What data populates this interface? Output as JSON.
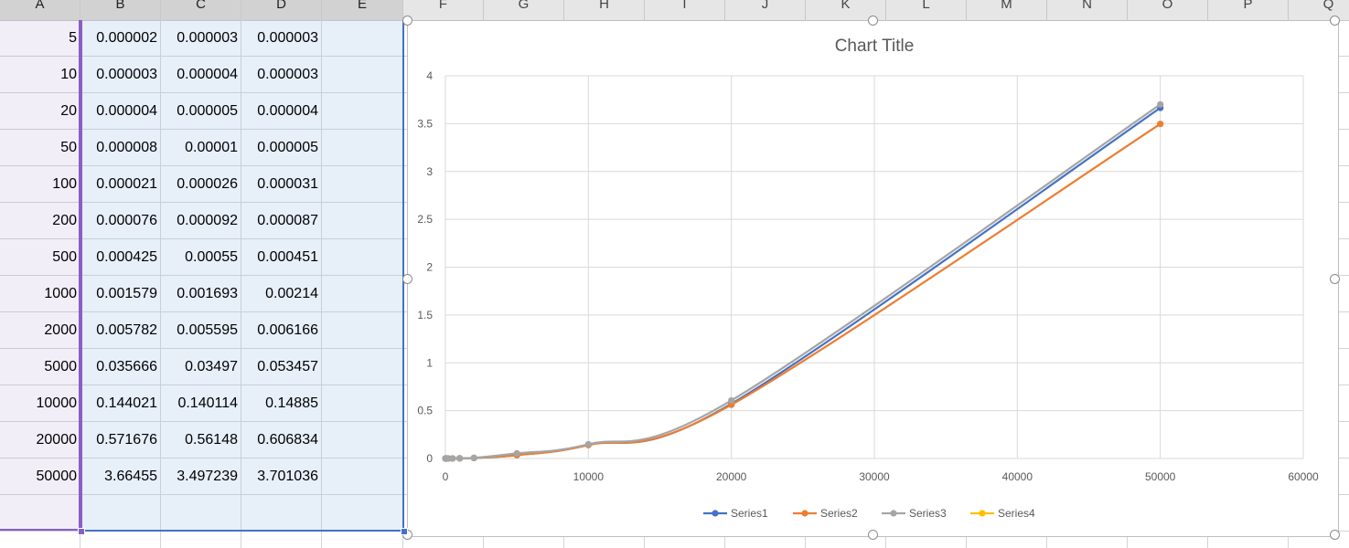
{
  "sheet": {
    "columns": [
      "A",
      "B",
      "C",
      "D",
      "E",
      "F",
      "G",
      "H",
      "I",
      "J",
      "K",
      "L",
      "M",
      "N",
      "O",
      "P",
      "Q"
    ],
    "selected_columns": [
      "A",
      "B",
      "C",
      "D",
      "E"
    ],
    "rows": [
      [
        "5",
        "0.000002",
        "0.000003",
        "0.000003"
      ],
      [
        "10",
        "0.000003",
        "0.000004",
        "0.000003"
      ],
      [
        "20",
        "0.000004",
        "0.000005",
        "0.000004"
      ],
      [
        "50",
        "0.000008",
        "0.00001",
        "0.000005"
      ],
      [
        "100",
        "0.000021",
        "0.000026",
        "0.000031"
      ],
      [
        "200",
        "0.000076",
        "0.000092",
        "0.000087"
      ],
      [
        "500",
        "0.000425",
        "0.00055",
        "0.000451"
      ],
      [
        "1000",
        "0.001579",
        "0.001693",
        "0.00214"
      ],
      [
        "2000",
        "0.005782",
        "0.005595",
        "0.006166"
      ],
      [
        "5000",
        "0.035666",
        "0.03497",
        "0.053457"
      ],
      [
        "10000",
        "0.144021",
        "0.140114",
        "0.14885"
      ],
      [
        "20000",
        "0.571676",
        "0.56148",
        "0.606834"
      ],
      [
        "50000",
        "3.66455",
        "3.497239",
        "3.701036"
      ]
    ]
  },
  "chart_data": {
    "type": "scatter",
    "smooth": true,
    "title": "Chart Title",
    "xlim": [
      0,
      60000
    ],
    "ylim": [
      0,
      4
    ],
    "xticks": [
      "0",
      "10000",
      "20000",
      "30000",
      "40000",
      "50000",
      "60000"
    ],
    "yticks": [
      "0",
      "0.5",
      "1",
      "1.5",
      "2",
      "2.5",
      "3",
      "3.5",
      "4"
    ],
    "grid": true,
    "legend_position": "bottom",
    "x": [
      5,
      10,
      20,
      50,
      100,
      200,
      500,
      1000,
      2000,
      5000,
      10000,
      20000,
      50000
    ],
    "series": [
      {
        "name": "Series1",
        "color": "#4472c4",
        "values": [
          2e-06,
          3e-06,
          4e-06,
          8e-06,
          2.1e-05,
          7.6e-05,
          0.000425,
          0.001579,
          0.005782,
          0.035666,
          0.144021,
          0.571676,
          3.66455
        ]
      },
      {
        "name": "Series2",
        "color": "#ed7d31",
        "values": [
          3e-06,
          4e-06,
          5e-06,
          1e-05,
          2.6e-05,
          9.2e-05,
          0.00055,
          0.001693,
          0.005595,
          0.03497,
          0.140114,
          0.56148,
          3.497239
        ]
      },
      {
        "name": "Series3",
        "color": "#a5a5a5",
        "values": [
          3e-06,
          3e-06,
          4e-06,
          5e-06,
          3.1e-05,
          8.7e-05,
          0.000451,
          0.00214,
          0.006166,
          0.053457,
          0.14885,
          0.606834,
          3.701036
        ]
      },
      {
        "name": "Series4",
        "color": "#ffc000",
        "values": []
      }
    ]
  }
}
